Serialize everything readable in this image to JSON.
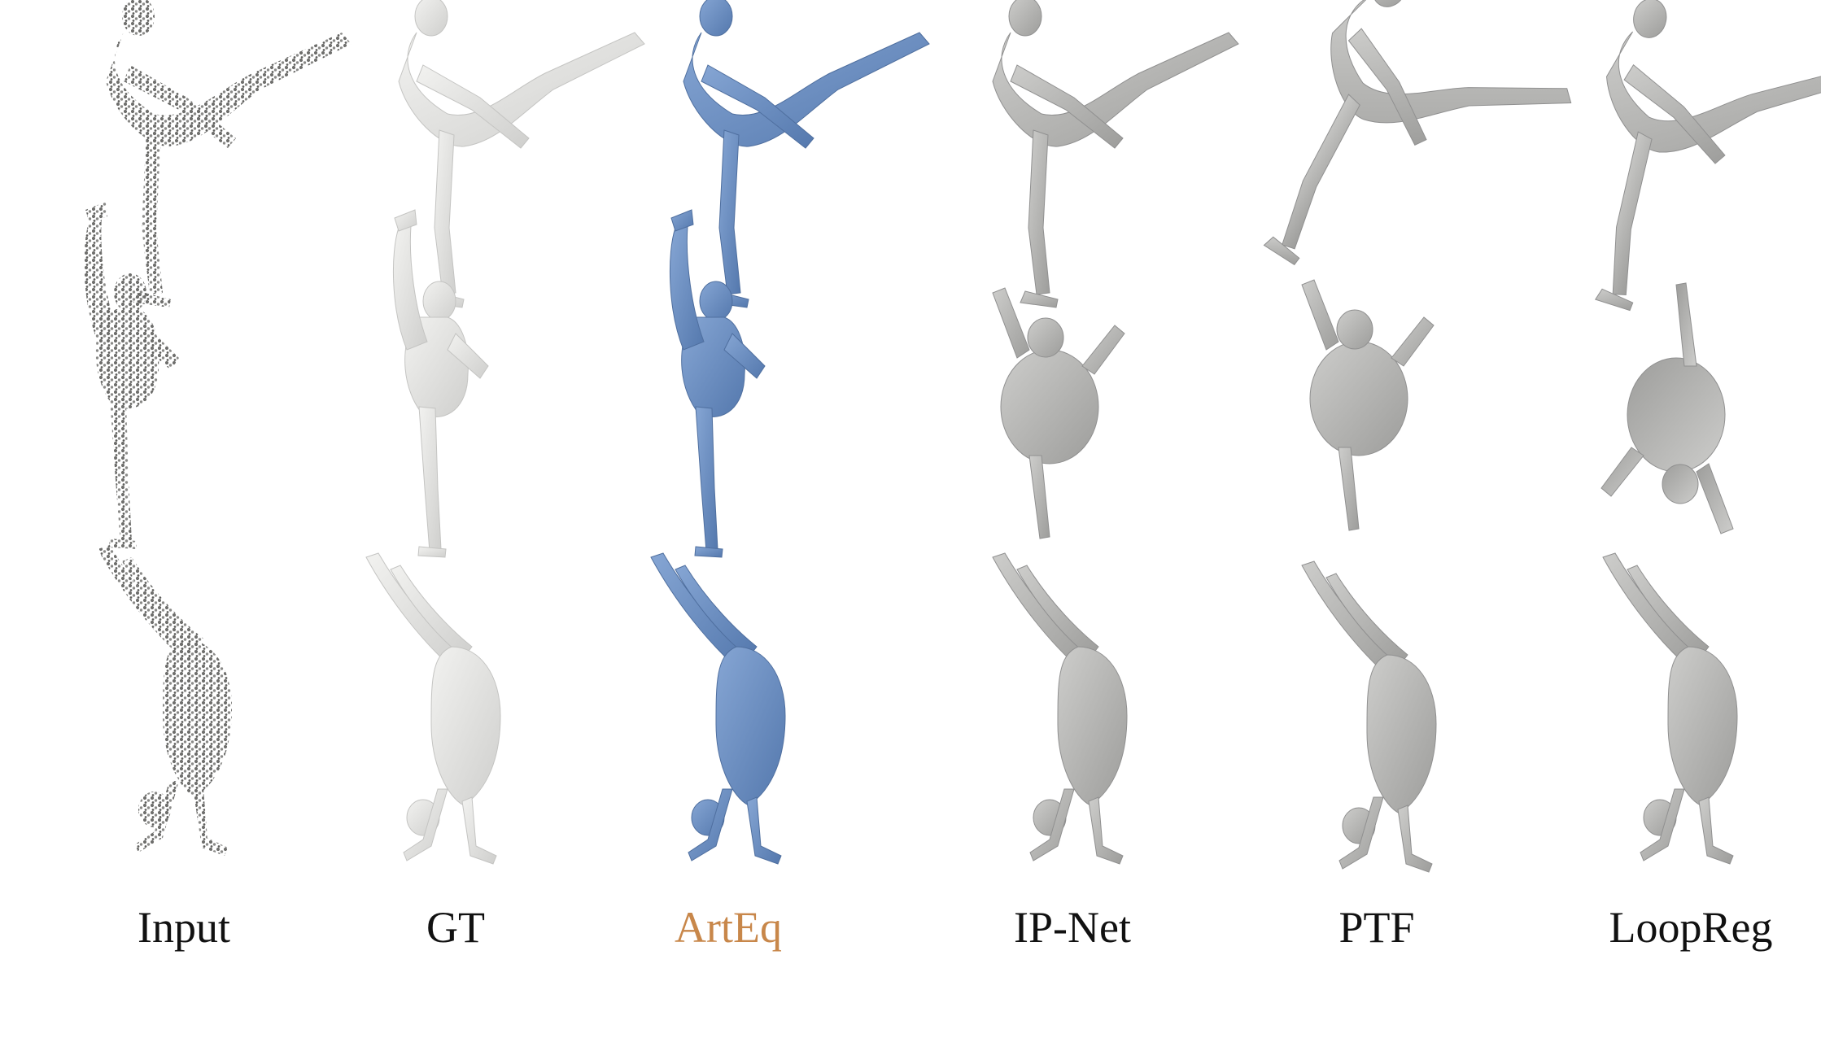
{
  "columns": [
    {
      "label": "Input",
      "kind": "point-cloud"
    },
    {
      "label": "GT",
      "kind": "mesh-light"
    },
    {
      "label": "ArtEq",
      "kind": "mesh-blue",
      "highlight": true
    },
    {
      "label": "IP-Net",
      "kind": "mesh-gray"
    },
    {
      "label": "PTF",
      "kind": "mesh-gray"
    },
    {
      "label": "LoopReg",
      "kind": "mesh-gray"
    }
  ],
  "rows": [
    {
      "pose": "standing-side-kick"
    },
    {
      "pose": "standing-split-leg-raise"
    },
    {
      "pose": "handstand-walkover"
    }
  ],
  "colors": {
    "point_cloud": "#7a7a78",
    "mesh_light": "#e4e4e2",
    "mesh_blue": "#6f93c6",
    "mesh_gray": "#bdbdbb",
    "highlight_label": "#c8874a",
    "label_text": "#111111"
  }
}
